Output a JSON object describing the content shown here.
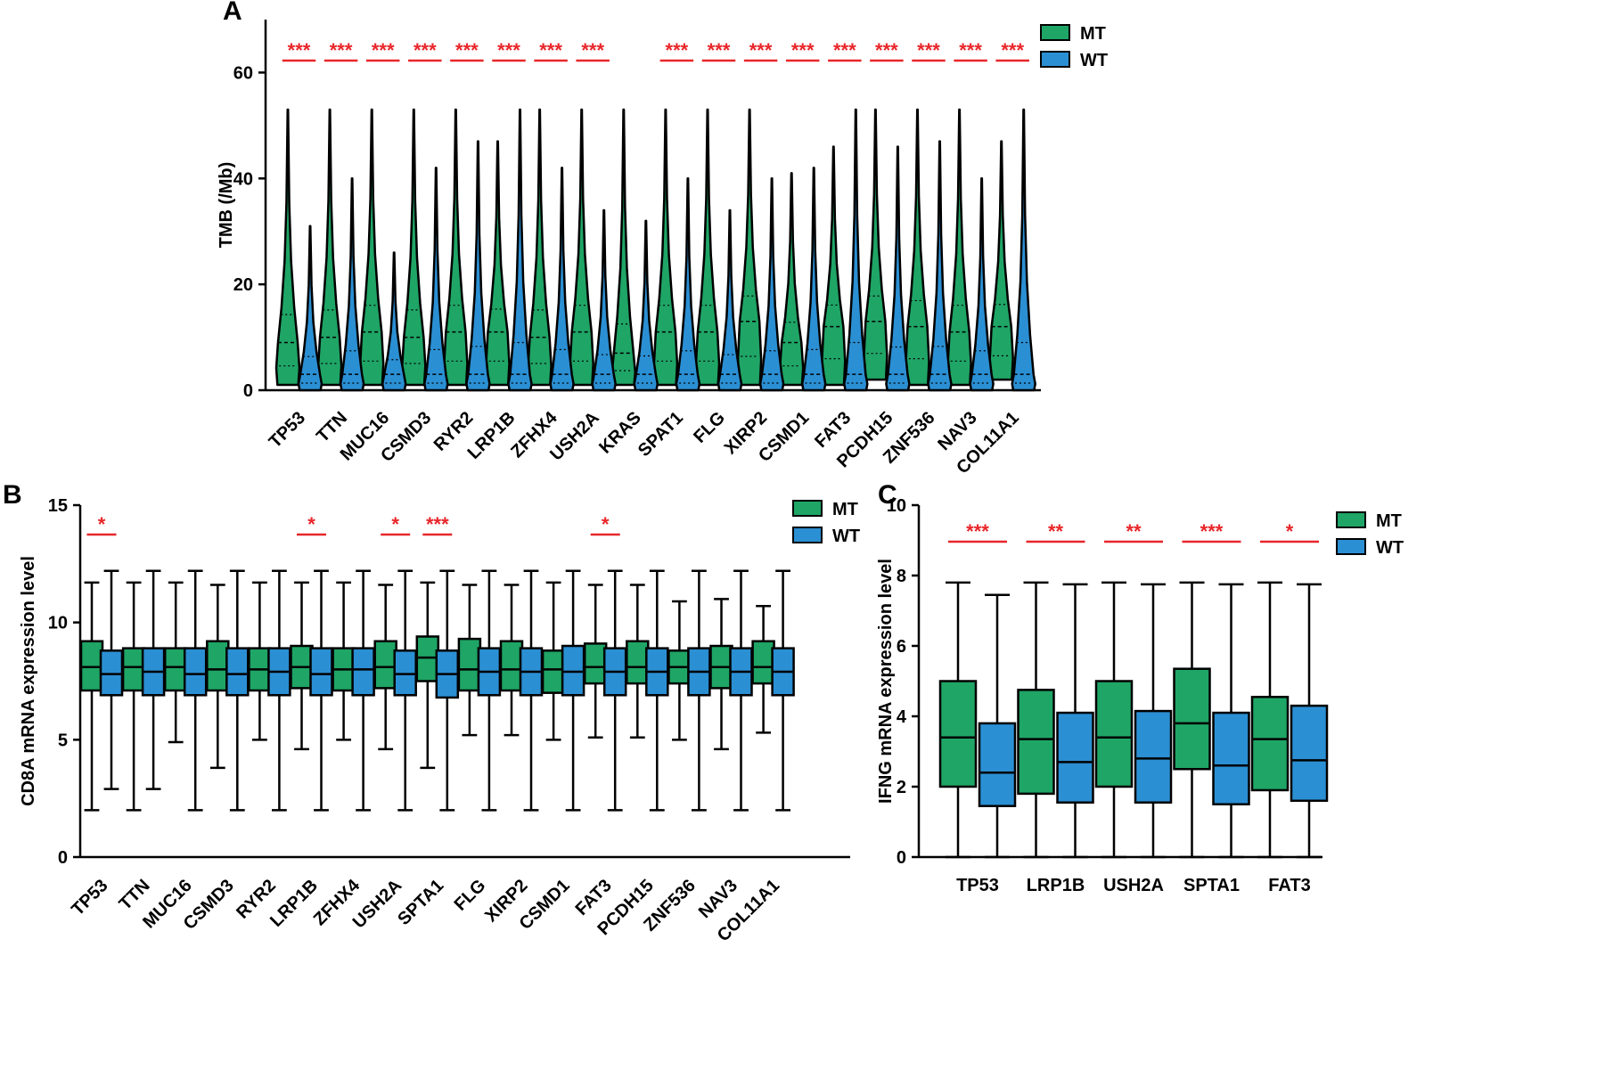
{
  "colors": {
    "mt": "#1fa566",
    "wt": "#2b8fd3",
    "sig": "#e8262a"
  },
  "chart_data": [
    {
      "panel": "A",
      "type": "violin",
      "ylabel": "TMB (/Mb)",
      "ylim": [
        0,
        70
      ],
      "yticks": [
        0,
        20,
        40,
        60
      ],
      "legend": [
        "MT",
        "WT"
      ],
      "categories": [
        "TP53",
        "TTN",
        "MUC16",
        "CSMD3",
        "RYR2",
        "LRP1B",
        "ZFHX4",
        "USH2A",
        "KRAS",
        "SPAT1",
        "FLG",
        "XIRP2",
        "CSMD1",
        "FAT3",
        "PCDH15",
        "ZNF536",
        "NAV3",
        "COL11A1"
      ],
      "significance": [
        "***",
        "***",
        "***",
        "***",
        "***",
        "***",
        "***",
        "***",
        "",
        "***",
        "***",
        "***",
        "***",
        "***",
        "***",
        "***",
        "***",
        "***"
      ],
      "series": [
        {
          "name": "MT",
          "median": [
            9,
            10,
            11,
            10,
            11,
            11,
            10,
            11,
            7,
            11,
            11,
            13,
            9,
            12,
            13,
            12,
            11,
            12
          ],
          "max": [
            53,
            53,
            53,
            53,
            53,
            47,
            53,
            53,
            53,
            53,
            53,
            53,
            41,
            46,
            53,
            53,
            53,
            47
          ],
          "min": [
            1,
            1,
            1,
            1,
            1,
            1,
            1,
            1,
            1,
            1,
            1,
            1,
            1,
            1,
            2,
            1,
            1,
            2
          ]
        },
        {
          "name": "WT",
          "median": [
            3,
            3,
            3,
            3,
            3,
            3,
            3,
            3,
            3,
            3,
            3,
            3,
            3,
            3,
            3,
            3,
            3,
            3
          ],
          "max": [
            31,
            40,
            26,
            42,
            47,
            53,
            42,
            34,
            32,
            40,
            34,
            40,
            42,
            53,
            46,
            47,
            40,
            53
          ],
          "min": [
            0,
            0,
            0,
            0,
            0,
            0,
            0,
            0,
            0,
            0,
            0,
            0,
            0,
            0,
            0,
            0,
            0,
            0
          ]
        }
      ]
    },
    {
      "panel": "B",
      "type": "box",
      "ylabel": "CD8A mRNA expression level",
      "ylim": [
        0,
        15
      ],
      "yticks": [
        0,
        5,
        10,
        15
      ],
      "legend": [
        "MT",
        "WT"
      ],
      "categories": [
        "TP53",
        "TTN",
        "MUC16",
        "CSMD3",
        "RYR2",
        "LRP1B",
        "ZFHX4",
        "USH2A",
        "SPTA1",
        "FLG",
        "XIRP2",
        "CSMD1",
        "FAT3",
        "PCDH15",
        "ZNF536",
        "NAV3",
        "COL11A1"
      ],
      "significance": [
        "*",
        "",
        "",
        "",
        "",
        "*",
        "",
        "*",
        "***",
        "",
        "",
        "",
        "*",
        "",
        "",
        "",
        ""
      ],
      "series": [
        {
          "name": "MT",
          "min": [
            2.0,
            2.0,
            4.9,
            3.8,
            5.0,
            4.6,
            5.0,
            4.6,
            3.8,
            5.2,
            5.2,
            5.0,
            5.1,
            5.1,
            5.0,
            4.6,
            5.3
          ],
          "q1": [
            7.1,
            7.1,
            7.1,
            7.1,
            7.1,
            7.2,
            7.1,
            7.2,
            7.5,
            7.1,
            7.1,
            7.0,
            7.4,
            7.4,
            7.4,
            7.2,
            7.4
          ],
          "median": [
            8.1,
            8.1,
            8.1,
            8.0,
            8.0,
            8.1,
            8.0,
            8.1,
            8.5,
            8.0,
            8.0,
            8.0,
            8.1,
            8.1,
            8.1,
            8.1,
            8.1
          ],
          "q3": [
            9.2,
            8.9,
            8.9,
            9.2,
            8.9,
            9.0,
            8.9,
            9.2,
            9.4,
            9.3,
            9.2,
            8.8,
            9.1,
            9.2,
            8.8,
            9.0,
            9.2
          ],
          "max": [
            11.7,
            11.7,
            11.7,
            11.6,
            11.7,
            11.7,
            11.7,
            11.6,
            11.7,
            11.6,
            11.6,
            11.7,
            11.6,
            11.6,
            10.9,
            11.0,
            10.7
          ]
        },
        {
          "name": "WT",
          "min": [
            2.9,
            2.9,
            2.0,
            2.0,
            2.0,
            2.0,
            2.0,
            2.0,
            2.0,
            2.0,
            2.0,
            2.0,
            2.0,
            2.0,
            2.0,
            2.0,
            2.0
          ],
          "q1": [
            6.9,
            6.9,
            6.9,
            6.9,
            6.9,
            6.9,
            6.9,
            6.9,
            6.8,
            6.9,
            6.9,
            6.9,
            6.9,
            6.9,
            6.9,
            6.9,
            6.9
          ],
          "median": [
            7.8,
            7.9,
            7.8,
            7.8,
            7.9,
            7.8,
            8.0,
            7.8,
            7.8,
            7.9,
            7.9,
            7.9,
            7.9,
            7.9,
            7.9,
            7.9,
            7.9
          ],
          "q3": [
            8.8,
            8.9,
            8.9,
            8.9,
            8.9,
            8.9,
            8.9,
            8.8,
            8.8,
            8.9,
            8.9,
            9.0,
            8.9,
            8.9,
            8.9,
            8.9,
            8.9
          ],
          "max": [
            12.2,
            12.2,
            12.2,
            12.2,
            12.2,
            12.2,
            12.2,
            12.2,
            12.2,
            12.2,
            12.2,
            12.2,
            12.2,
            12.2,
            12.2,
            12.2,
            12.2
          ]
        }
      ]
    },
    {
      "panel": "C",
      "type": "box",
      "ylabel": "IFNG mRNA expression level",
      "ylim": [
        0,
        10
      ],
      "yticks": [
        0,
        2,
        4,
        6,
        8,
        10
      ],
      "legend": [
        "MT",
        "WT"
      ],
      "categories": [
        "TP53",
        "LRP1B",
        "USH2A",
        "SPTA1",
        "FAT3"
      ],
      "significance": [
        "***",
        "**",
        "**",
        "***",
        "*"
      ],
      "series": [
        {
          "name": "MT",
          "min": [
            0,
            0,
            0,
            0,
            0
          ],
          "q1": [
            2.0,
            1.8,
            2.0,
            2.5,
            1.9
          ],
          "median": [
            3.4,
            3.35,
            3.4,
            3.8,
            3.35
          ],
          "q3": [
            5.0,
            4.75,
            5.0,
            5.35,
            4.55
          ],
          "max": [
            7.8,
            7.8,
            7.8,
            7.8,
            7.8
          ]
        },
        {
          "name": "WT",
          "min": [
            0,
            0,
            0,
            0,
            0
          ],
          "q1": [
            1.45,
            1.55,
            1.55,
            1.5,
            1.6
          ],
          "median": [
            2.4,
            2.7,
            2.8,
            2.6,
            2.75
          ],
          "q3": [
            3.8,
            4.1,
            4.15,
            4.1,
            4.3
          ],
          "max": [
            7.45,
            7.75,
            7.75,
            7.75,
            7.75
          ]
        }
      ]
    }
  ]
}
